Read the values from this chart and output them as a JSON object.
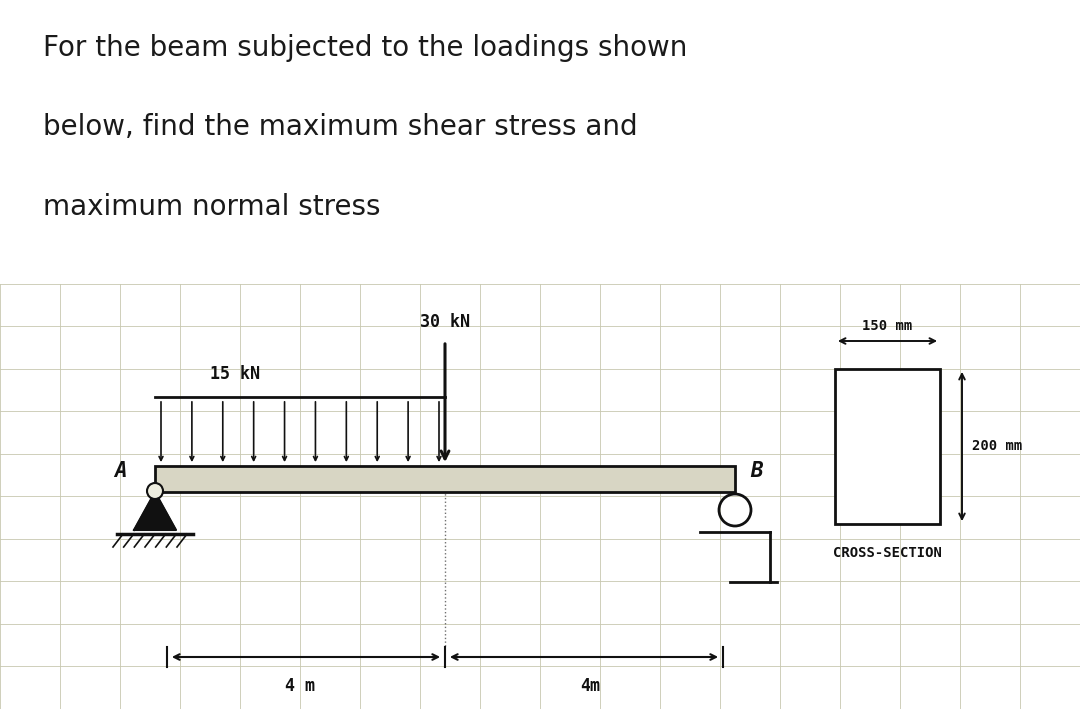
{
  "title_line1": "For the beam subjected to the loadings shown",
  "title_line2": "below, find the maximum shear stress and",
  "title_line3": "maximum normal stress",
  "title_fontsize": 20,
  "title_color": "#1a1a1a",
  "bg_color": "#eeeee0",
  "grid_color": "#c8c8b0",
  "beam_color": "#111111",
  "figure_bg": "#ffffff",
  "distributed_load_label": "15 kN",
  "point_load_label": "30 kN",
  "dim_label_left": "4 m",
  "dim_label_right": "4m",
  "cs_width_label": "150 mm",
  "cs_height_label": "200 mm",
  "cs_label": "CROSS-SECTION",
  "label_A": "A",
  "label_B": "B"
}
